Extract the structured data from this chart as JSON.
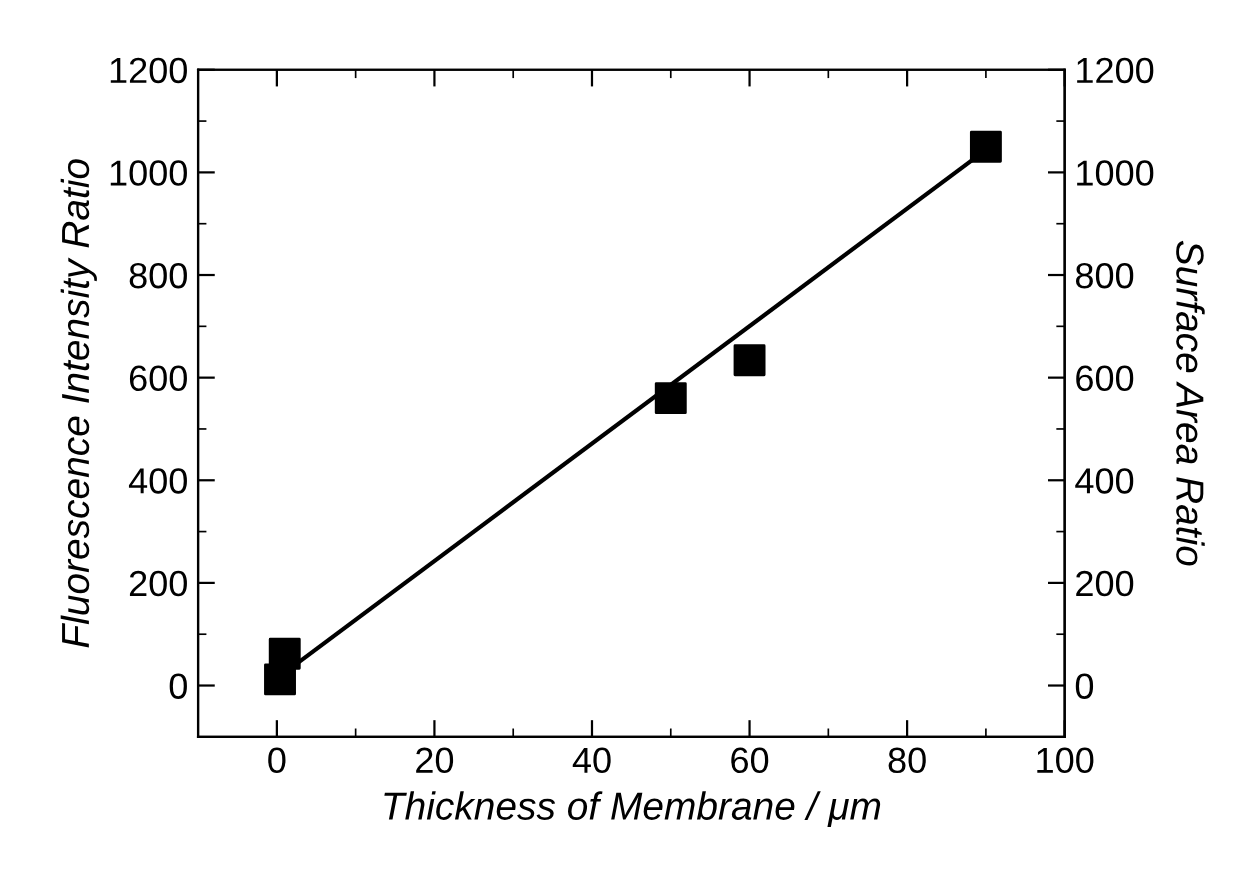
{
  "chart_data": {
    "type": "scatter",
    "xlabel": "Thickness of Membrane / μm",
    "ylabel": "Fluorescence Intensity Ratio",
    "y2label": "Surface Area Ratio",
    "xlim": [
      -10,
      100
    ],
    "xticks": [
      0,
      20,
      40,
      60,
      80,
      100
    ],
    "ylim": [
      -100,
      1200
    ],
    "yticks": [
      0,
      200,
      400,
      600,
      800,
      1000,
      1200
    ],
    "y2lim": [
      -100,
      1200
    ],
    "y2ticks": [
      0,
      200,
      400,
      600,
      800,
      1000,
      1200
    ],
    "grid": false,
    "series": [
      {
        "color": "#000000",
        "marker": "square",
        "x": [
          0.4,
          1,
          50,
          60,
          90
        ],
        "values": [
          12,
          62,
          560,
          634,
          1050
        ]
      },
      {
        "type": "line",
        "marker": "none",
        "color": "#000000",
        "x": [
          1,
          90
        ],
        "values": [
          25,
          1044
        ]
      }
    ]
  }
}
